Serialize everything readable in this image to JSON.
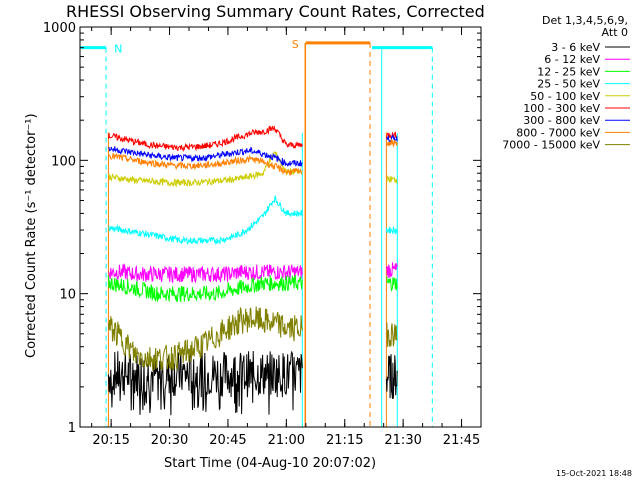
{
  "chart_data": {
    "type": "line",
    "title": "RHESSI Observing Summary Count Rates, Corrected",
    "xlabel": "Start Time (04-Aug-10 20:07:02)",
    "ylabel": "Corrected Count Rate (s⁻¹ detector⁻¹)",
    "yscale": "log",
    "ylim": [
      1,
      1000
    ],
    "y_ticks": [
      "1",
      "10",
      "100",
      "1000"
    ],
    "x_unit": "minutes after 20:07:02",
    "xlim": [
      0,
      103
    ],
    "x_ticks": [
      {
        "label": "20:15",
        "minute": 8
      },
      {
        "label": "20:30",
        "minute": 23
      },
      {
        "label": "20:45",
        "minute": 38
      },
      {
        "label": "21:00",
        "minute": 53
      },
      {
        "label": "21:15",
        "minute": 68
      },
      {
        "label": "21:30",
        "minute": 83
      },
      {
        "label": "21:45",
        "minute": 98
      }
    ],
    "legend_header": [
      "Det 1,3,4,5,6,9,",
      "Att 0"
    ],
    "legend_position": "right",
    "segments": [
      [
        7.3,
        57.1
      ],
      [
        78.7,
        81.5
      ]
    ],
    "flag_labels": [
      {
        "text": "N",
        "color": "#00ffff"
      },
      {
        "text": "S",
        "color": "#ff8000"
      }
    ],
    "night_intervals": [
      [
        0,
        6.7
      ],
      [
        75,
        90.5
      ]
    ],
    "night_level": 700,
    "saa_interval": [
      58,
      74.5
    ],
    "saa_level": 760,
    "series": [
      {
        "name": "3 - 6 keV",
        "color": "#000000",
        "y": [
          2.5,
          2.5,
          2.5,
          2.5,
          2.5,
          2.5,
          2.5,
          2.5,
          2.5,
          2.5,
          2.5,
          2.5,
          2.5,
          2.5,
          2.5,
          2.5
        ],
        "x": [
          8,
          11,
          14,
          17,
          20,
          23,
          26,
          29,
          32,
          35,
          38,
          41,
          44,
          47,
          50,
          53
        ]
      },
      {
        "name": "6 - 12 keV",
        "color": "#ff00ff",
        "y": [
          14.5,
          14.5,
          14,
          14,
          14,
          14,
          14,
          14,
          14,
          14,
          14,
          14.5,
          14.5,
          14.5,
          14.5,
          14.5
        ],
        "x": [
          8,
          11,
          14,
          17,
          20,
          23,
          26,
          29,
          32,
          35,
          38,
          41,
          44,
          47,
          50,
          53
        ]
      },
      {
        "name": "12 - 25 keV",
        "color": "#00ff00",
        "y": [
          12,
          11.5,
          11,
          10.5,
          10,
          10,
          10,
          10,
          10,
          10,
          10.5,
          11,
          11.5,
          12,
          12,
          12
        ],
        "x": [
          8,
          11,
          14,
          17,
          20,
          23,
          26,
          29,
          32,
          35,
          38,
          41,
          44,
          47,
          50,
          53
        ]
      },
      {
        "name": "25 - 50 keV",
        "color": "#00ffff",
        "y": [
          31,
          30,
          29,
          28,
          27,
          26,
          25,
          25,
          25,
          25,
          26,
          28,
          32,
          38,
          52,
          40
        ],
        "x": [
          8,
          11,
          14,
          17,
          20,
          23,
          26,
          29,
          32,
          35,
          38,
          41,
          44,
          47,
          50,
          53
        ]
      },
      {
        "name": "50 - 100 keV",
        "color": "#cccc00",
        "y": [
          75,
          73,
          71,
          70,
          69,
          68,
          68,
          68,
          69,
          70,
          71,
          73,
          76,
          80,
          115,
          82
        ],
        "x": [
          8,
          11,
          14,
          17,
          20,
          23,
          26,
          29,
          32,
          35,
          38,
          41,
          44,
          47,
          50,
          53
        ]
      },
      {
        "name": "100 - 300 keV",
        "color": "#ff0000",
        "y": [
          152,
          145,
          138,
          132,
          128,
          126,
          125,
          126,
          128,
          132,
          140,
          150,
          160,
          165,
          175,
          130
        ],
        "x": [
          8,
          11,
          14,
          17,
          20,
          23,
          26,
          29,
          32,
          35,
          38,
          41,
          44,
          47,
          50,
          53
        ]
      },
      {
        "name": "300 - 800 keV",
        "color": "#0000ff",
        "y": [
          122,
          118,
          114,
          110,
          107,
          105,
          104,
          104,
          105,
          108,
          112,
          116,
          118,
          112,
          105,
          95
        ],
        "x": [
          8,
          11,
          14,
          17,
          20,
          23,
          26,
          29,
          32,
          35,
          38,
          41,
          44,
          47,
          50,
          53
        ]
      },
      {
        "name": "800 - 7000 keV",
        "color": "#ff8000",
        "y": [
          108,
          104,
          100,
          97,
          94,
          92,
          91,
          91,
          92,
          94,
          97,
          100,
          102,
          98,
          90,
          82
        ],
        "x": [
          8,
          11,
          14,
          17,
          20,
          23,
          26,
          29,
          32,
          35,
          38,
          41,
          44,
          47,
          50,
          53
        ]
      },
      {
        "name": "7000 - 15000 keV",
        "color": "#808000",
        "y": [
          5.5,
          4.5,
          3.5,
          3.3,
          3.3,
          3.3,
          3.5,
          3.8,
          4.2,
          4.8,
          5.5,
          6.2,
          6.5,
          6.2,
          6,
          5.5
        ],
        "x": [
          8,
          11,
          14,
          17,
          20,
          23,
          26,
          29,
          32,
          35,
          38,
          41,
          44,
          47,
          50,
          53
        ]
      }
    ],
    "second_segment_values": [
      {
        "name": "3 - 6 keV",
        "y": 2.4
      },
      {
        "name": "6 - 12 keV",
        "y": 15
      },
      {
        "name": "12 - 25 keV",
        "y": 12
      },
      {
        "name": "25 - 50 keV",
        "y": 30
      },
      {
        "name": "50 - 100 keV",
        "y": 72
      },
      {
        "name": "100 - 300 keV",
        "y": 155
      },
      {
        "name": "300 - 800 keV",
        "y": 145
      },
      {
        "name": "800 - 7000 keV",
        "y": 135
      },
      {
        "name": "7000 - 15000 keV",
        "y": 5
      }
    ]
  },
  "footer": "15-Oct-2021 18:48"
}
